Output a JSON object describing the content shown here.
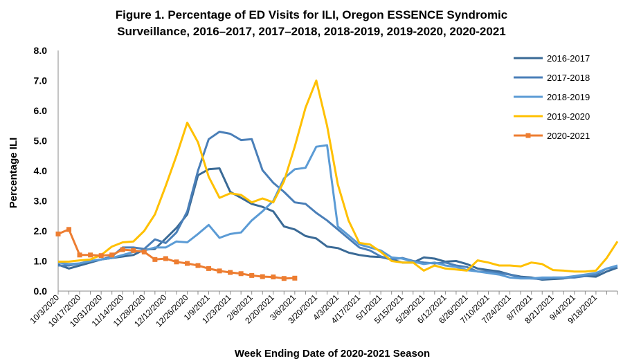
{
  "chart_data": {
    "type": "line",
    "title_line1": "Figure 1. Percentage of ED Visits for ILI, Oregon ESSENCE Syndromic",
    "title_line2": "Surveillance, 2016–2017, 2017–2018, 2018-2019, 2019-2020, 2020-2021",
    "xlabel": "Week Ending Date of 2020-2021 Season",
    "ylabel": "Percentage ILI",
    "ylim": [
      0,
      8
    ],
    "yticks": [
      "0.0",
      "1.0",
      "2.0",
      "3.0",
      "4.0",
      "5.0",
      "6.0",
      "7.0",
      "8.0"
    ],
    "x_ticks": [
      "10/3/2020",
      "10/17/2020",
      "10/31/2020",
      "11/14/2020",
      "11/28/2020",
      "12/12/2020",
      "12/26/2020",
      "1/9/2021",
      "1/23/2021",
      "2/6/2021",
      "2/20/2021",
      "3/6/2021",
      "3/20/2021",
      "4/3/2021",
      "4/17/2021",
      "5/1/2021",
      "5/15/2021",
      "5/29/2021",
      "6/12/2021",
      "6/26/2021",
      "7/10/2021",
      "7/24/2021",
      "8/7/2021",
      "8/21/2021",
      "9/4/2021",
      "9/18/2021"
    ],
    "legend_position": "top-right",
    "grid": false,
    "series": [
      {
        "name": "2016-2017",
        "color": "#3A6A96",
        "marker": "none",
        "values": [
          0.88,
          0.75,
          0.85,
          0.95,
          1.05,
          1.1,
          1.15,
          1.2,
          1.38,
          1.4,
          1.75,
          2.1,
          2.55,
          3.85,
          4.05,
          4.08,
          3.3,
          3.1,
          2.9,
          2.8,
          2.65,
          2.15,
          2.05,
          1.83,
          1.75,
          1.48,
          1.43,
          1.28,
          1.2,
          1.15,
          1.13,
          1.05,
          0.95,
          0.95,
          1.12,
          1.08,
          0.98,
          1.0,
          0.9,
          0.75,
          0.7,
          0.65,
          0.55,
          0.48,
          0.45,
          0.38,
          0.4,
          0.42,
          0.48,
          0.5,
          0.48,
          0.65,
          0.78
        ]
      },
      {
        "name": "2017-2018",
        "color": "#4A7FB8",
        "marker": "none",
        "values": [
          0.85,
          0.85,
          0.92,
          1.0,
          1.05,
          1.15,
          1.45,
          1.45,
          1.4,
          1.72,
          1.6,
          1.95,
          2.65,
          4.0,
          5.05,
          5.3,
          5.23,
          5.02,
          5.05,
          4.02,
          3.6,
          3.3,
          2.95,
          2.9,
          2.6,
          2.35,
          2.05,
          1.75,
          1.45,
          1.35,
          1.15,
          1.05,
          1.1,
          1.0,
          0.95,
          0.92,
          0.95,
          0.85,
          0.8,
          0.65,
          0.65,
          0.6,
          0.55,
          0.45,
          0.42,
          0.4,
          0.45,
          0.45,
          0.45,
          0.5,
          0.55,
          0.75,
          0.8
        ]
      },
      {
        "name": "2018-2019",
        "color": "#5B9BD5",
        "marker": "none",
        "values": [
          0.95,
          0.9,
          0.92,
          1.0,
          1.05,
          1.1,
          1.2,
          1.3,
          1.35,
          1.45,
          1.45,
          1.65,
          1.62,
          1.9,
          2.2,
          1.77,
          1.9,
          1.95,
          2.35,
          2.65,
          3.0,
          3.75,
          4.05,
          4.1,
          4.8,
          4.85,
          2.15,
          1.85,
          1.55,
          1.45,
          1.35,
          1.12,
          1.08,
          0.98,
          0.9,
          0.95,
          0.85,
          0.8,
          0.7,
          0.65,
          0.6,
          0.55,
          0.45,
          0.42,
          0.42,
          0.45,
          0.45,
          0.45,
          0.5,
          0.55,
          0.6,
          0.75,
          0.85
        ]
      },
      {
        "name": "2019-2020",
        "color": "#FFC000",
        "marker": "none",
        "values": [
          0.98,
          0.98,
          1.02,
          1.05,
          1.2,
          1.48,
          1.62,
          1.65,
          2.0,
          2.55,
          3.5,
          4.5,
          5.6,
          4.95,
          3.8,
          3.1,
          3.25,
          3.2,
          2.95,
          3.08,
          2.95,
          3.65,
          4.8,
          6.1,
          7.0,
          5.5,
          3.55,
          2.35,
          1.6,
          1.55,
          1.3,
          1.0,
          0.95,
          0.95,
          0.68,
          0.85,
          0.75,
          0.72,
          0.68,
          1.02,
          0.95,
          0.85,
          0.85,
          0.82,
          0.95,
          0.9,
          0.7,
          0.68,
          0.65,
          0.65,
          0.68,
          1.1,
          1.65
        ]
      },
      {
        "name": "2020-2021",
        "color": "#ED7D31",
        "marker": "square",
        "values": [
          1.9,
          2.05,
          1.2,
          1.2,
          1.18,
          1.2,
          1.38,
          1.35,
          1.3,
          1.05,
          1.08,
          0.97,
          0.92,
          0.85,
          0.75,
          0.67,
          0.62,
          0.58,
          0.52,
          0.48,
          0.47,
          0.42,
          0.43
        ]
      }
    ]
  }
}
